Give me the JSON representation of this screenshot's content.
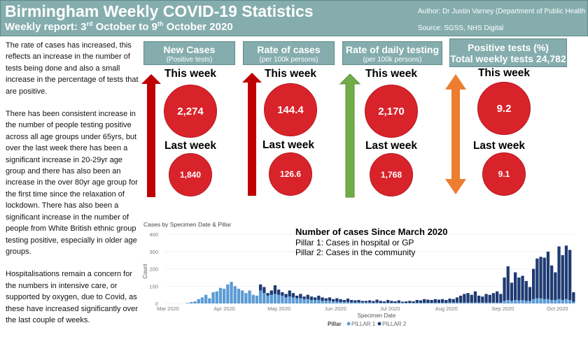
{
  "header": {
    "title": "Birmingham Weekly COVID-19 Statistics",
    "subtitle_a": "Weekly report: 3",
    "subtitle_sup1": "rd",
    "subtitle_b": " October to 9",
    "subtitle_sup2": "th",
    "subtitle_c": " October 2020",
    "author": "Author: Dr Justin Varney (Department of Public Health",
    "source": "Source: SGSS, NHS Digital"
  },
  "summary": [
    "The rate of cases  has increased, this reflects an increase in the number of tests being done and also a small increase in the percentage of tests that are positive.",
    "There has been consistent increase in the number of people testing positive across all age groups under 65yrs, but over the last week there has been a significant increase in 20-29yr age group and there has also been an increase in the over 80yr age group for the first time since the relaxation of lockdown. There has also been a significant increase in the number of people from White British ethnic group testing positive, especially in older age groups.",
    "Hospitalisations remain a concern for the numbers in intensive care, or supported by oxygen, due to Covid, as these have increased significantly over the last couple of weeks."
  ],
  "labels": {
    "this_week": "This week",
    "last_week": "Last week"
  },
  "kpis": [
    {
      "title": "New Cases",
      "subtitle": "(Positive tests)",
      "this_week": "2,274",
      "last_week": "1,840",
      "trend": "up",
      "color": "#c00000"
    },
    {
      "title": "Rate of cases",
      "subtitle": "(per 100k persons)",
      "this_week": "144.4",
      "last_week": "126.6",
      "trend": "up",
      "color": "#c00000"
    },
    {
      "title": "Rate of daily testing",
      "subtitle": "(per 100k persons)",
      "this_week": "2,170",
      "last_week": "1,768",
      "trend": "up",
      "color": "#70ad47"
    },
    {
      "title": "Positive tests (%)",
      "subtitle": "Total weekly tests 24,782",
      "this_week": "9.2",
      "last_week": "9.1",
      "trend": "up-down",
      "color": "#ed7d31"
    }
  ],
  "chart_data": {
    "type": "bar",
    "stacked": true,
    "title": "Cases by Specimen Date & Pillar",
    "annotation_title": "Number of cases Since March 2020",
    "annotation_lines": [
      "Pillar 1: Cases in hospital or GP",
      "Pillar 2: Cases in the community"
    ],
    "xlabel": "Specimen Date",
    "ylabel": "Count",
    "ylim": [
      0,
      400
    ],
    "yticks": [
      0,
      100,
      200,
      300,
      400
    ],
    "xticks": [
      {
        "day": 0,
        "label": "Mar 2020"
      },
      {
        "day": 31,
        "label": "Apr 2020"
      },
      {
        "day": 61,
        "label": "May 2020"
      },
      {
        "day": 92,
        "label": "Jun 2020"
      },
      {
        "day": 122,
        "label": "Jul 2020"
      },
      {
        "day": 153,
        "label": "Aug 2020"
      },
      {
        "day": 184,
        "label": "Sep 2020"
      },
      {
        "day": 214,
        "label": "Oct 2020"
      }
    ],
    "bin_days": 2,
    "legend_title": "Pillar",
    "legend": "bottom",
    "series": [
      {
        "name": "PILLAR 1",
        "color": "#5b9bd5",
        "values": [
          0,
          0,
          0,
          0,
          0,
          3,
          8,
          12,
          25,
          35,
          50,
          30,
          65,
          70,
          90,
          85,
          110,
          125,
          100,
          85,
          75,
          60,
          75,
          50,
          45,
          75,
          60,
          45,
          50,
          55,
          50,
          45,
          35,
          40,
          35,
          30,
          30,
          25,
          25,
          20,
          20,
          20,
          15,
          15,
          15,
          12,
          10,
          8,
          8,
          8,
          6,
          6,
          6,
          5,
          5,
          5,
          4,
          5,
          4,
          4,
          4,
          4,
          4,
          4,
          4,
          4,
          4,
          4,
          4,
          4,
          4,
          4,
          4,
          4,
          4,
          4,
          4,
          5,
          5,
          5,
          5,
          5,
          5,
          5,
          5,
          5,
          5,
          5,
          5,
          5,
          5,
          5,
          15,
          20,
          15,
          20,
          18,
          20,
          15,
          15,
          25,
          30,
          30,
          25,
          25,
          20,
          20,
          25,
          20,
          25,
          20,
          10
        ]
      },
      {
        "name": "PILLAR 2",
        "color": "#1f3b73",
        "values": [
          0,
          0,
          0,
          0,
          0,
          0,
          0,
          0,
          0,
          0,
          0,
          0,
          0,
          0,
          0,
          0,
          0,
          0,
          0,
          0,
          0,
          0,
          0,
          0,
          0,
          35,
          35,
          15,
          25,
          50,
          30,
          20,
          20,
          35,
          25,
          15,
          25,
          15,
          25,
          20,
          15,
          25,
          20,
          15,
          20,
          13,
          20,
          17,
          12,
          20,
          14,
          12,
          14,
          10,
          10,
          13,
          10,
          17,
          11,
          8,
          16,
          11,
          8,
          14,
          6,
          8,
          11,
          8,
          16,
          14,
          21,
          18,
          16,
          21,
          18,
          21,
          16,
          23,
          20,
          30,
          40,
          50,
          55,
          45,
          65,
          40,
          35,
          50,
          45,
          55,
          65,
          50,
          135,
          195,
          105,
          160,
          132,
          140,
          115,
          80,
          175,
          230,
          240,
          240,
          275,
          200,
          160,
          305,
          260,
          310,
          290,
          55
        ]
      }
    ]
  }
}
